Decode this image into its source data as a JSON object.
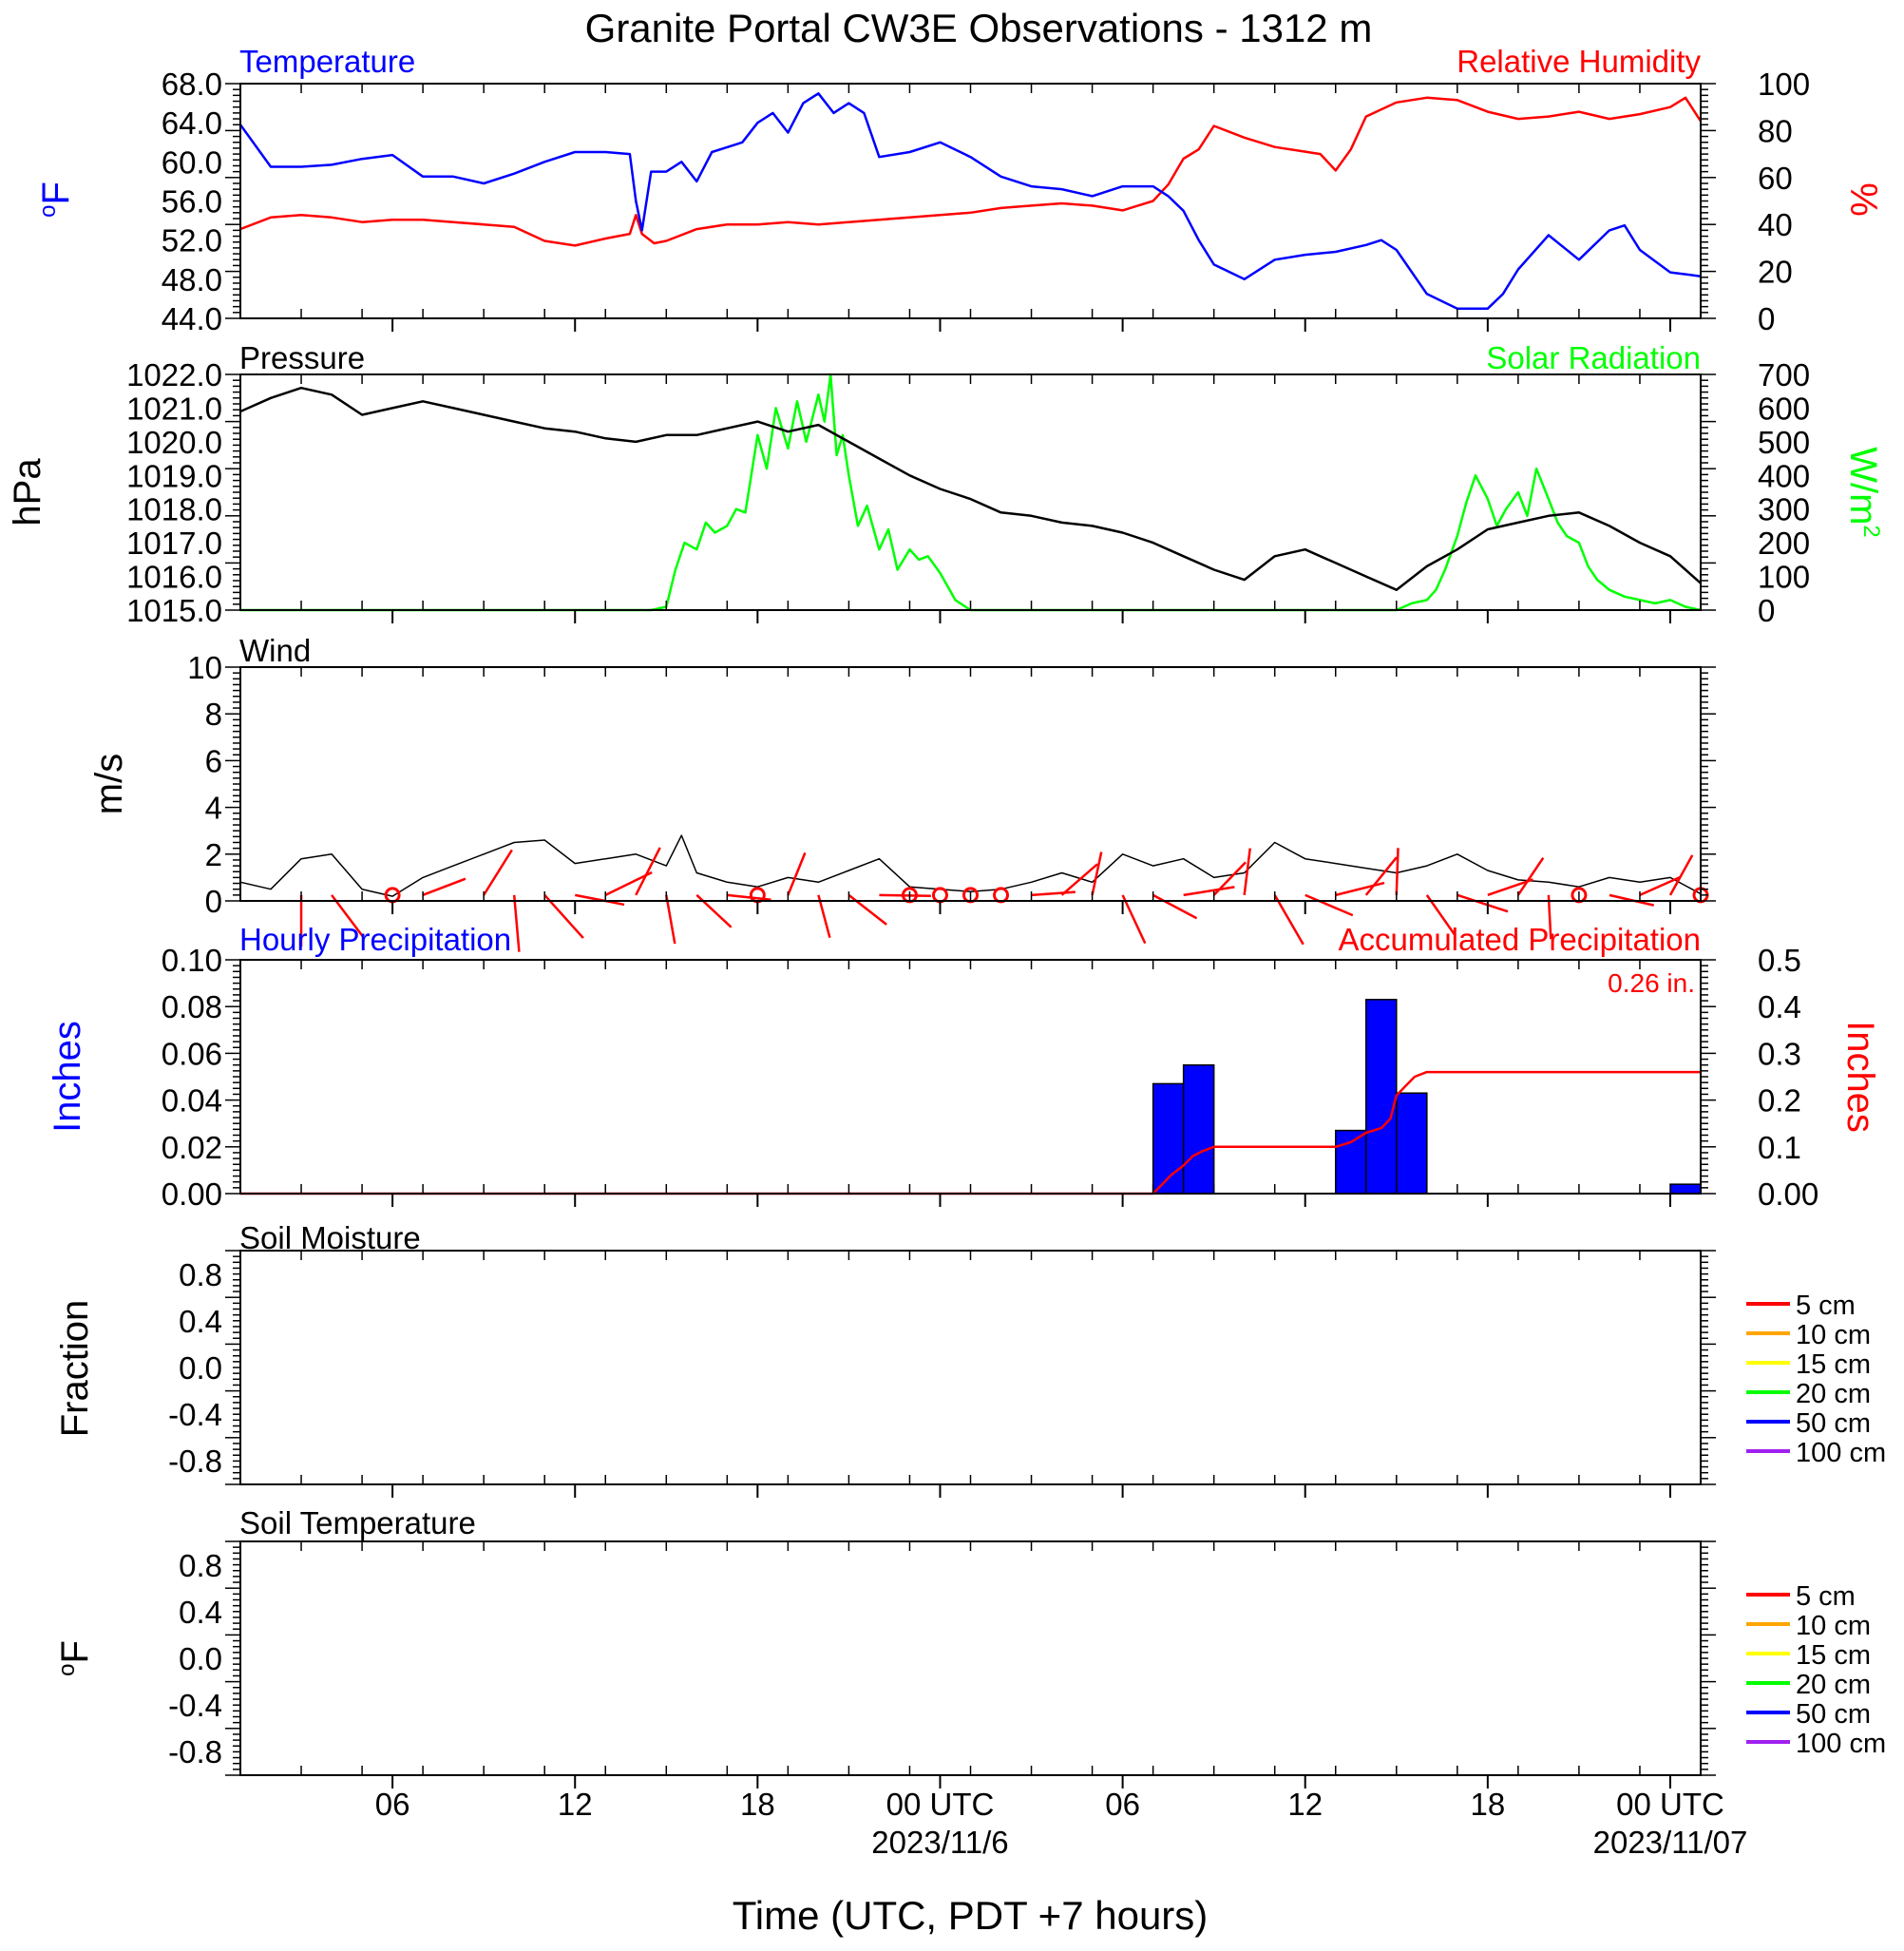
{
  "title": "Granite Portal CW3E Observations - 1312 m",
  "x_axis": {
    "label": "Time (UTC, PDT +7 hours)",
    "ticks": [
      "06",
      "12",
      "18",
      "00 UTC",
      "06",
      "12",
      "18",
      "00 UTC"
    ],
    "date_labels": [
      "2023/11/6",
      "2023/11/07"
    ]
  },
  "panels": {
    "temp": {
      "left_title": "Temperature",
      "right_title": "Relative Humidity",
      "left_unit": "oF",
      "right_unit": "%",
      "left_ticks": [
        "68.0",
        "64.0",
        "60.0",
        "56.0",
        "52.0",
        "48.0",
        "44.0"
      ],
      "right_ticks": [
        "100",
        "80",
        "60",
        "40",
        "20",
        "0"
      ]
    },
    "pressure": {
      "left_title": "Pressure",
      "right_title": "Solar Radiation",
      "left_unit": "hPa",
      "right_unit": "W/m2",
      "left_ticks": [
        "1022.0",
        "1021.0",
        "1020.0",
        "1019.0",
        "1018.0",
        "1017.0",
        "1016.0",
        "1015.0"
      ],
      "right_ticks": [
        "700",
        "600",
        "500",
        "400",
        "300",
        "200",
        "100",
        "0"
      ]
    },
    "wind": {
      "left_title": "Wind",
      "left_unit": "m/s",
      "left_ticks": [
        "10",
        "8",
        "6",
        "4",
        "2",
        "0"
      ]
    },
    "precip": {
      "left_title": "Hourly Precipitation",
      "right_title": "Accumulated Precipitation",
      "left_unit": "Inches",
      "right_unit": "Inches",
      "total_label": "0.26 in.",
      "left_ticks": [
        "0.10",
        "0.08",
        "0.06",
        "0.04",
        "0.02",
        "0.00"
      ],
      "right_ticks": [
        "0.5",
        "0.4",
        "0.3",
        "0.2",
        "0.1",
        "0.00"
      ]
    },
    "soil_moisture": {
      "left_title": "Soil Moisture",
      "left_unit": "Fraction",
      "left_ticks": [
        "0.8",
        "0.4",
        "0.0",
        "-0.4",
        "-0.8"
      ],
      "legend": [
        "5 cm",
        "10 cm",
        "15 cm",
        "20 cm",
        "50 cm",
        "100 cm"
      ]
    },
    "soil_temp": {
      "left_title": "Soil Temperature",
      "left_unit": "oF",
      "left_ticks": [
        "0.8",
        "0.4",
        "0.0",
        "-0.4",
        "-0.8"
      ],
      "legend": [
        "5 cm",
        "10 cm",
        "15 cm",
        "20 cm",
        "50 cm",
        "100 cm"
      ]
    }
  },
  "colors": {
    "temperature": "#0000ff",
    "humidity": "#ff0000",
    "pressure": "#000000",
    "solar": "#00ff00",
    "wind": "#000000",
    "barb": "#ff0000",
    "precip_bar": "#0000ff",
    "accum": "#ff0000",
    "legend": [
      "#ff0000",
      "#ffa500",
      "#ffff00",
      "#00ff00",
      "#0000ff",
      "#a020f0"
    ]
  },
  "chart_data": [
    {
      "type": "line",
      "name": "temperature_rh",
      "x_unit": "hours since 2023-11-05 01:00 UTC",
      "xlim": [
        0,
        48
      ],
      "series": [
        {
          "name": "Temperature",
          "axis": "left",
          "ylim": [
            44,
            68
          ],
          "x": [
            0,
            1,
            2,
            3,
            4,
            5,
            6,
            7,
            8,
            9,
            10,
            11,
            12,
            12.8,
            13.0,
            13.2,
            13.5,
            14,
            14.5,
            15,
            15.5,
            16,
            16.5,
            17,
            17.5,
            18,
            18.5,
            19,
            19.5,
            20,
            20.5,
            21,
            22,
            23,
            24,
            25,
            26,
            27,
            28,
            29,
            30,
            30.5,
            31,
            31.5,
            32,
            33,
            34,
            35,
            36,
            37,
            37.5,
            38,
            39,
            40,
            41,
            41.5,
            42,
            43,
            44,
            45,
            45.5,
            46,
            47,
            48
          ],
          "values": [
            63.8,
            59.5,
            59.5,
            59.7,
            60.3,
            60.7,
            58.5,
            58.5,
            57.8,
            58.8,
            60.0,
            61.0,
            61.0,
            60.8,
            56,
            53.0,
            59,
            59.0,
            60.0,
            58,
            61,
            61.5,
            62,
            64.0,
            65.0,
            63,
            66.0,
            67,
            65,
            66.0,
            65,
            60.5,
            61.0,
            62.0,
            60.5,
            58.5,
            57.5,
            57.2,
            56.5,
            57.5,
            57.5,
            56.5,
            55.0,
            52.0,
            49.5,
            48.0,
            50.0,
            50.5,
            50.8,
            51.5,
            52.0,
            51.0,
            46.5,
            45.0,
            45.0,
            46.5,
            49.0,
            52.5,
            50.0,
            53.0,
            53.5,
            51.0,
            48.7,
            48.3
          ]
        },
        {
          "name": "Relative Humidity",
          "axis": "right",
          "ylim": [
            0,
            100
          ],
          "x": [
            0,
            1,
            2,
            3,
            4,
            5,
            6,
            7,
            8,
            9,
            10,
            11,
            12,
            12.8,
            13.0,
            13.2,
            13.6,
            14,
            15,
            16,
            17,
            18,
            19,
            20,
            21,
            22,
            23,
            24,
            25,
            26,
            27,
            28,
            29,
            29.5,
            30,
            30.5,
            31,
            31.5,
            32,
            33,
            34,
            35,
            35.5,
            36,
            36.5,
            37,
            38,
            39,
            40,
            41,
            42,
            43,
            44,
            45,
            46,
            47,
            47.5,
            48
          ],
          "values": [
            38,
            43,
            44,
            43,
            41,
            42,
            42,
            41,
            40,
            39,
            33,
            31,
            34,
            36,
            44,
            36,
            32,
            33,
            38,
            40,
            40,
            41,
            40,
            41,
            42,
            43,
            44,
            45,
            47,
            48,
            49,
            48,
            46,
            48,
            50,
            57,
            68,
            72,
            82,
            77,
            73,
            71,
            70,
            63,
            72,
            86,
            92,
            94,
            93,
            88,
            85,
            86,
            88,
            85,
            87,
            90,
            94,
            84
          ]
        }
      ]
    },
    {
      "type": "line",
      "name": "pressure_solar",
      "x_unit": "hours since 2023-11-05 01:00 UTC",
      "xlim": [
        0,
        48
      ],
      "series": [
        {
          "name": "Pressure",
          "axis": "left",
          "ylim": [
            1015,
            1022
          ],
          "x": [
            0,
            1,
            2,
            3,
            4,
            5,
            6,
            7,
            8,
            9,
            10,
            11,
            12,
            13,
            14,
            15,
            16,
            17,
            18,
            19,
            20,
            21,
            22,
            23,
            24,
            25,
            26,
            27,
            28,
            29,
            30,
            31,
            32,
            33,
            34,
            35,
            36,
            37,
            38,
            39,
            40,
            41,
            42,
            43,
            44,
            45,
            46,
            47,
            48
          ],
          "values": [
            1020.9,
            1021.3,
            1021.6,
            1021.4,
            1020.8,
            1021.0,
            1021.2,
            1021.0,
            1020.8,
            1020.6,
            1020.4,
            1020.3,
            1020.1,
            1020.0,
            1020.2,
            1020.2,
            1020.4,
            1020.6,
            1020.3,
            1020.5,
            1020.0,
            1019.5,
            1019.0,
            1018.6,
            1018.3,
            1017.9,
            1017.8,
            1017.6,
            1017.5,
            1017.3,
            1017.0,
            1016.6,
            1016.2,
            1015.9,
            1016.6,
            1016.8,
            1016.4,
            1016.0,
            1015.6,
            1016.3,
            1016.8,
            1017.4,
            1017.6,
            1017.8,
            1017.9,
            1017.5,
            1017.0,
            1016.6,
            1015.8
          ]
        },
        {
          "name": "Solar Radiation",
          "axis": "right",
          "ylim": [
            0,
            700
          ],
          "x": [
            0,
            5,
            10,
            13.5,
            14,
            14.3,
            14.6,
            15,
            15.3,
            15.6,
            16,
            16.3,
            16.6,
            17,
            17.3,
            17.6,
            18,
            18.3,
            18.6,
            19,
            19.2,
            19.4,
            19.6,
            19.8,
            20,
            20.3,
            20.6,
            21,
            21.3,
            21.6,
            22,
            22.3,
            22.6,
            23,
            23.5,
            24,
            24.5,
            38,
            38.5,
            39,
            39.3,
            39.6,
            40,
            40.3,
            40.6,
            41,
            41.3,
            41.6,
            42,
            42.3,
            42.6,
            43,
            43.3,
            43.6,
            44,
            44.3,
            44.6,
            45,
            45.5,
            46,
            46.5,
            47,
            47.5,
            48
          ],
          "values": [
            0,
            0,
            0,
            0,
            10,
            120,
            200,
            180,
            260,
            230,
            250,
            300,
            290,
            520,
            420,
            600,
            480,
            620,
            500,
            640,
            560,
            700,
            460,
            520,
            400,
            250,
            310,
            180,
            240,
            120,
            180,
            150,
            160,
            110,
            30,
            0,
            0,
            0,
            20,
            30,
            60,
            120,
            220,
            320,
            400,
            330,
            250,
            300,
            350,
            280,
            420,
            330,
            260,
            220,
            200,
            130,
            90,
            60,
            40,
            30,
            20,
            30,
            10,
            0
          ]
        }
      ]
    },
    {
      "type": "line",
      "name": "wind",
      "x_unit": "hours since 2023-11-05 01:00 UTC",
      "xlim": [
        0,
        48
      ],
      "series": [
        {
          "name": "Wind",
          "ylim": [
            0,
            10
          ],
          "x": [
            0,
            1,
            2,
            3,
            4,
            5,
            6,
            7,
            8,
            9,
            10,
            11,
            12,
            13,
            14,
            14.5,
            15,
            16,
            17,
            18,
            19,
            20,
            21,
            22,
            23,
            24,
            25,
            26,
            27,
            28,
            29,
            30,
            31,
            32,
            33,
            34,
            35,
            36,
            37,
            38,
            39,
            40,
            41,
            42,
            43,
            44,
            45,
            46,
            47,
            48
          ],
          "values": [
            0.8,
            0.5,
            1.8,
            2.0,
            0.5,
            0.2,
            1.0,
            1.5,
            2.0,
            2.5,
            2.6,
            1.6,
            1.8,
            2.0,
            1.5,
            2.8,
            1.2,
            0.8,
            0.6,
            1.0,
            0.8,
            1.3,
            1.8,
            0.6,
            0.5,
            0.4,
            0.5,
            0.8,
            1.2,
            0.8,
            2.0,
            1.5,
            1.8,
            1.0,
            1.2,
            2.5,
            1.8,
            1.6,
            1.4,
            1.2,
            1.5,
            2.0,
            1.3,
            0.9,
            0.8,
            0.6,
            1.0,
            0.8,
            1.0,
            0.3
          ]
        }
      ],
      "barbs": {
        "x": [
          2,
          3,
          5,
          6,
          8,
          9,
          10,
          11,
          12,
          13,
          14,
          15,
          16,
          17,
          18,
          19,
          20,
          21,
          22,
          23,
          24,
          25,
          26,
          27,
          28,
          29,
          30,
          31,
          32,
          33,
          34,
          35,
          36,
          37,
          38,
          39,
          40,
          41,
          42,
          43,
          44,
          45,
          46,
          47,
          48
        ],
        "note": "calm circles and short red barbs"
      }
    },
    {
      "type": "bar",
      "name": "precipitation",
      "x_unit": "hours since 2023-11-05 01:00 UTC",
      "xlim": [
        0,
        48
      ],
      "series": [
        {
          "name": "Hourly Precipitation",
          "axis": "left",
          "ylim": [
            0,
            0.1
          ],
          "x": [
            30.5,
            31.5,
            36.5,
            37.5,
            38.5,
            47.5
          ],
          "values": [
            0.047,
            0.055,
            0.027,
            0.083,
            0.043,
            0.004
          ]
        },
        {
          "name": "Accumulated Precipitation",
          "axis": "right",
          "ylim": [
            0,
            0.5
          ],
          "type": "line",
          "x": [
            0,
            30,
            30.3,
            30.6,
            31,
            31.3,
            31.6,
            32,
            36,
            36.5,
            37,
            37.5,
            37.8,
            38,
            38.3,
            38.6,
            39,
            48
          ],
          "values": [
            0,
            0,
            0.02,
            0.04,
            0.06,
            0.08,
            0.09,
            0.1,
            0.1,
            0.11,
            0.13,
            0.14,
            0.16,
            0.21,
            0.23,
            0.25,
            0.26,
            0.26
          ]
        }
      ]
    },
    {
      "type": "line",
      "name": "soil_moisture",
      "ylim": [
        -1,
        1
      ],
      "series": []
    },
    {
      "type": "line",
      "name": "soil_temperature",
      "ylim": [
        -1,
        1
      ],
      "series": []
    }
  ]
}
